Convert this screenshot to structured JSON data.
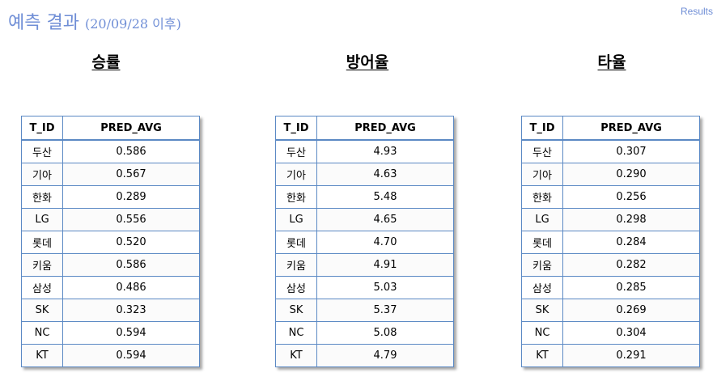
{
  "header": {
    "title": "예측 결과",
    "subtitle": "(20/09/28 이후)",
    "results_link": "Results"
  },
  "tables": [
    {
      "heading": "승률",
      "columns": [
        "T_ID",
        "PRED_AVG"
      ],
      "rows": [
        [
          "두산",
          "0.586"
        ],
        [
          "기아",
          "0.567"
        ],
        [
          "한화",
          "0.289"
        ],
        [
          "LG",
          "0.556"
        ],
        [
          "롯데",
          "0.520"
        ],
        [
          "키움",
          "0.586"
        ],
        [
          "삼성",
          "0.486"
        ],
        [
          "SK",
          "0.323"
        ],
        [
          "NC",
          "0.594"
        ],
        [
          "KT",
          "0.594"
        ]
      ]
    },
    {
      "heading": "방어율",
      "columns": [
        "T_ID",
        "PRED_AVG"
      ],
      "rows": [
        [
          "두산",
          "4.93"
        ],
        [
          "기아",
          "4.63"
        ],
        [
          "한화",
          "5.48"
        ],
        [
          "LG",
          "4.65"
        ],
        [
          "롯데",
          "4.70"
        ],
        [
          "키움",
          "4.91"
        ],
        [
          "삼성",
          "5.03"
        ],
        [
          "SK",
          "5.37"
        ],
        [
          "NC",
          "5.08"
        ],
        [
          "KT",
          "4.79"
        ]
      ]
    },
    {
      "heading": "타율",
      "columns": [
        "T_ID",
        "PRED_AVG"
      ],
      "rows": [
        [
          "두산",
          "0.307"
        ],
        [
          "기아",
          "0.290"
        ],
        [
          "한화",
          "0.256"
        ],
        [
          "LG",
          "0.298"
        ],
        [
          "롯데",
          "0.284"
        ],
        [
          "키움",
          "0.282"
        ],
        [
          "삼성",
          "0.285"
        ],
        [
          "SK",
          "0.269"
        ],
        [
          "NC",
          "0.304"
        ],
        [
          "KT",
          "0.291"
        ]
      ]
    }
  ],
  "colors": {
    "title": "#6f8ed6",
    "table_border": "#5b89c4"
  }
}
